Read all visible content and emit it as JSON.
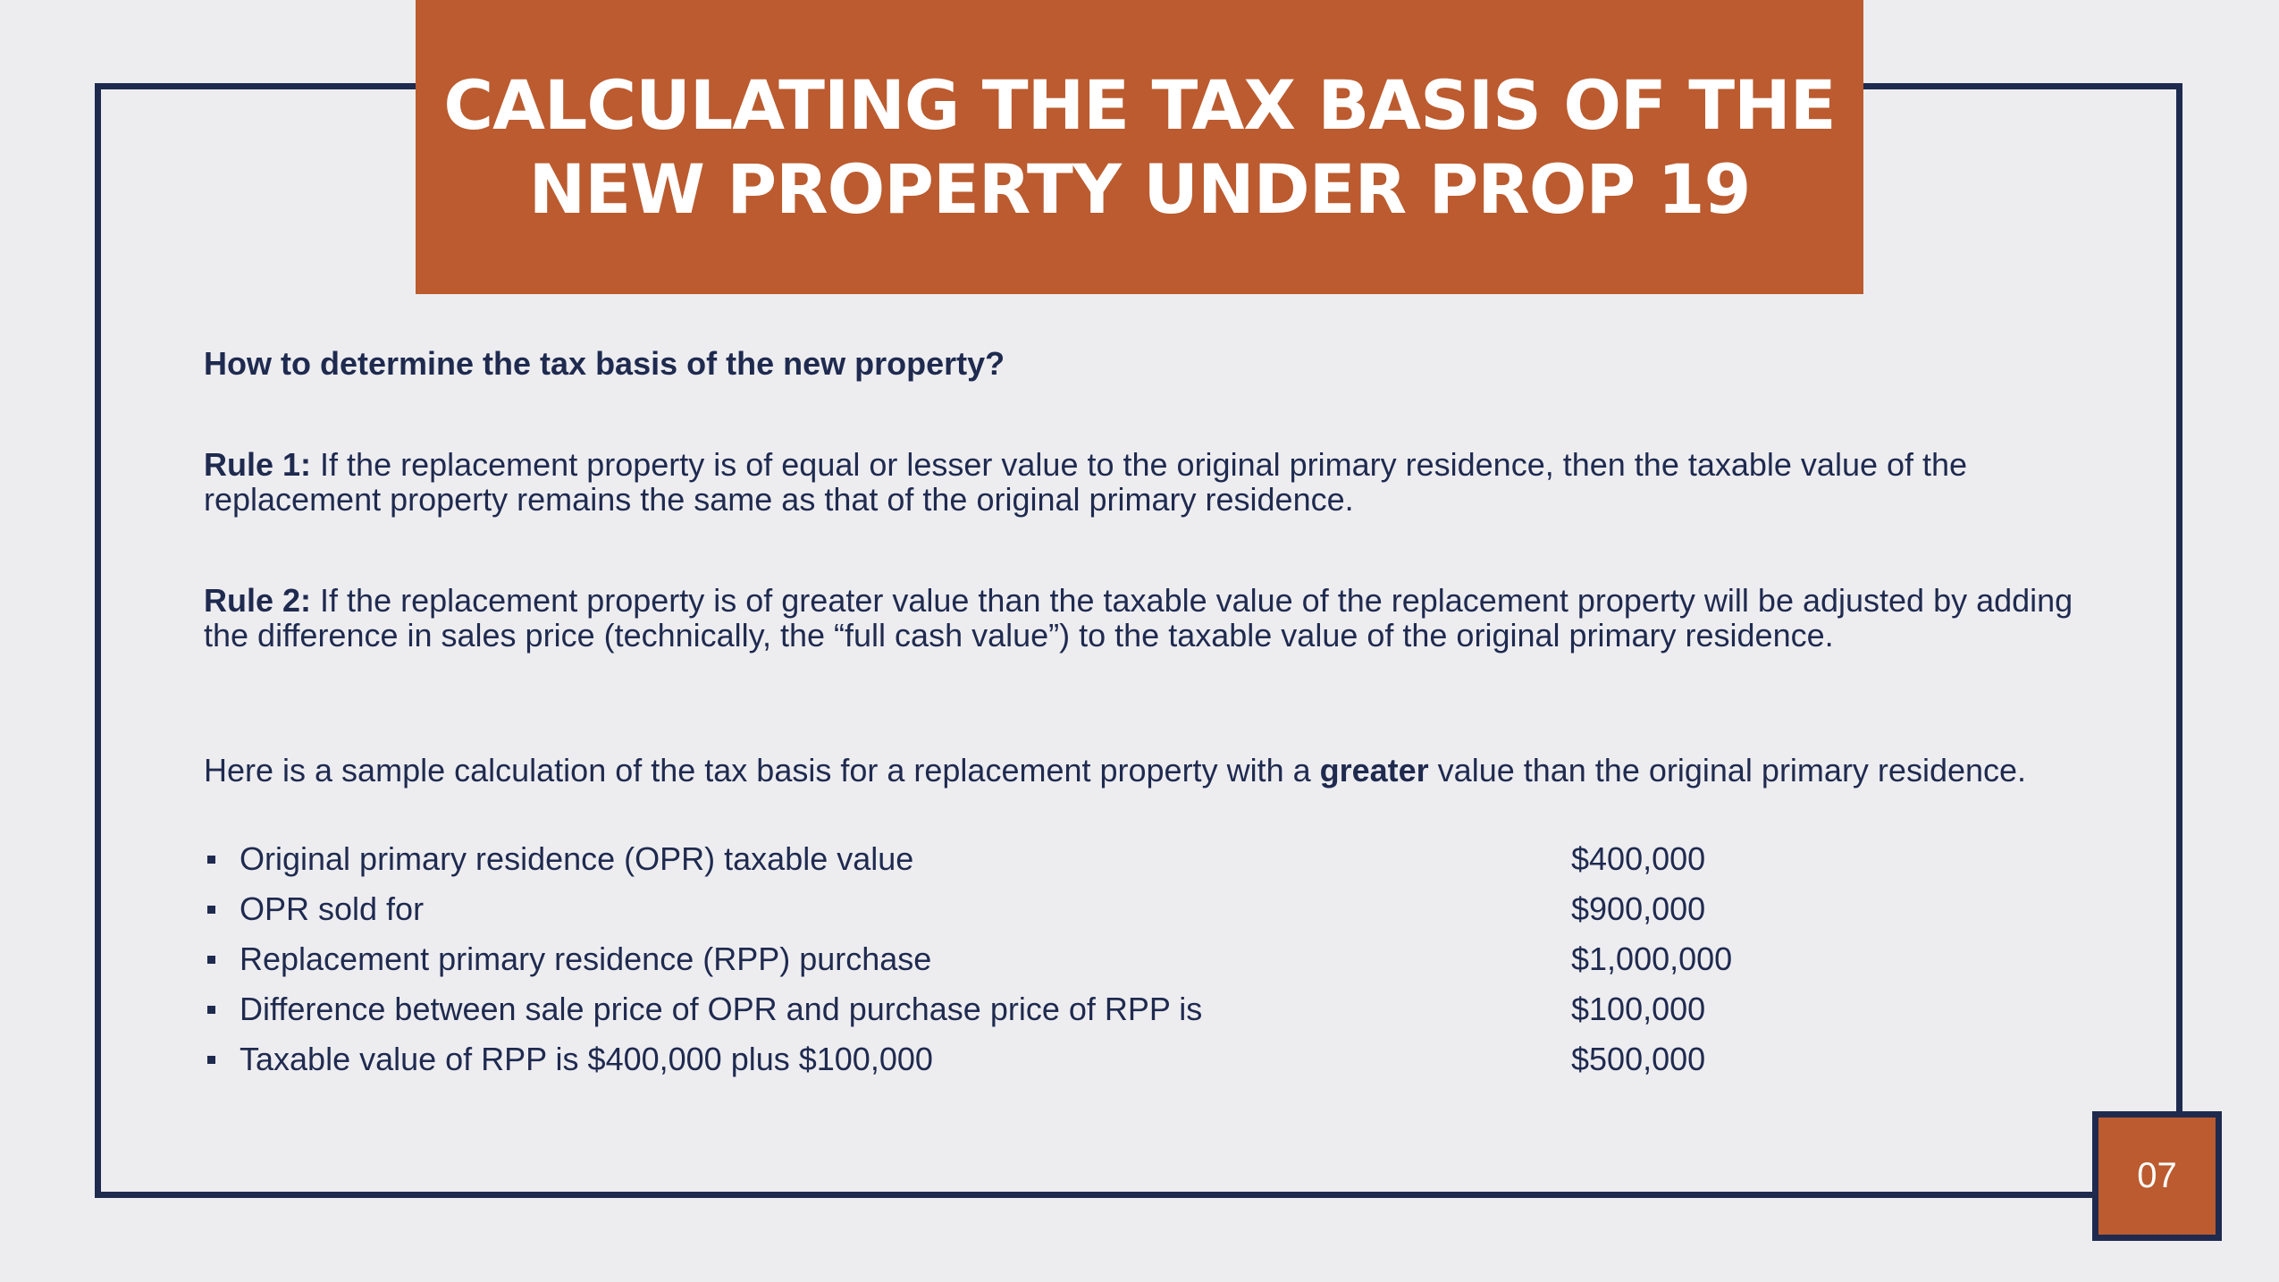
{
  "slide": {
    "title": "CALCULATING THE TAX BASIS OF THE NEW PROPERTY UNDER PROP 19",
    "question": "How to determine the tax basis of the new property?",
    "rule1": {
      "label": "Rule 1:",
      "text": " If the replacement property is of equal or lesser value to the original primary residence, then the taxable value of the replacement property remains the same as that of the original primary residence."
    },
    "rule2": {
      "label": "Rule 2:",
      "text": " If the replacement property is of greater value than the taxable value of the replacement property will be adjusted by adding the difference in sales price (technically, the “full cash value”) to the taxable value of the original primary residence."
    },
    "sample": {
      "before": "Here is a sample calculation of the tax basis for a replacement property with a ",
      "emphasis": "greater",
      "after": " value than the original primary residence."
    },
    "calculation": [
      {
        "label": "Original primary residence (OPR) taxable value",
        "amount": "$400,000"
      },
      {
        "label": "OPR sold for",
        "amount": "$900,000"
      },
      {
        "label": "Replacement primary residence (RPP) purchase",
        "amount": "$1,000,000"
      },
      {
        "label": "Difference between sale price of OPR and purchase price of RPP is",
        "amount": "$100,000"
      },
      {
        "label": "Taxable value of RPP is $400,000 plus $100,000",
        "amount": "$500,000"
      }
    ],
    "page_number": "07",
    "colors": {
      "accent": "#bb5b2f",
      "navy": "#1f2a4f",
      "background": "#ededf0"
    }
  }
}
